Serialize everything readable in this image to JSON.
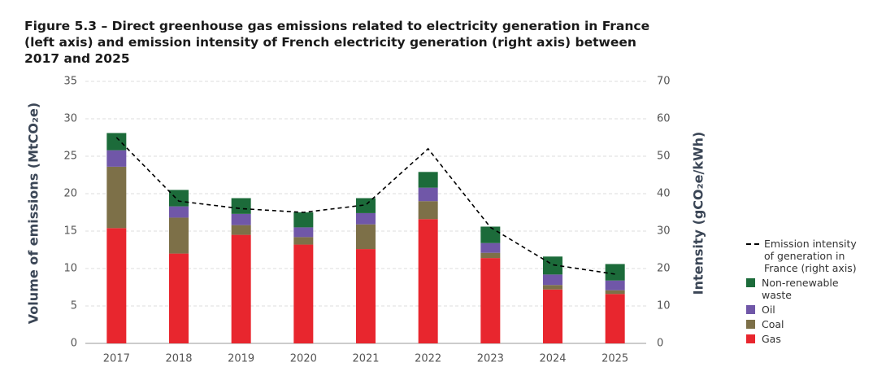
{
  "chart_data": {
    "type": "bar",
    "stacked": true,
    "title": "Figure 5.3 – Direct greenhouse gas emissions related to electricity generation in France (left axis) and emission intensity of French electricity generation (right axis) between 2017 and 2025",
    "y_label": "Volume of emissions (MtCO₂e)",
    "y2_label": "Intensity (gCO₂e/kWh)",
    "categories": [
      "2017",
      "2018",
      "2019",
      "2020",
      "2021",
      "2022",
      "2023",
      "2024",
      "2025"
    ],
    "series": [
      {
        "name": "Gas",
        "color": "#e8262e",
        "values": [
          15.4,
          12.0,
          14.5,
          13.2,
          12.6,
          16.6,
          11.4,
          7.2,
          6.6
        ]
      },
      {
        "name": "Coal",
        "color": "#7d7048",
        "values": [
          8.2,
          4.8,
          1.3,
          1.0,
          3.3,
          2.4,
          0.7,
          0.6,
          0.5
        ]
      },
      {
        "name": "Oil",
        "color": "#7057a8",
        "values": [
          2.2,
          1.5,
          1.5,
          1.3,
          1.5,
          1.8,
          1.3,
          1.4,
          1.3
        ]
      },
      {
        "name": "Non-renewable waste",
        "color": "#1c6b3a",
        "values": [
          2.3,
          2.2,
          2.1,
          2.0,
          2.0,
          2.1,
          2.2,
          2.4,
          2.2
        ]
      },
      {
        "name": "Emission intensity of generation in France (right axis)",
        "color": "#000000",
        "type": "line",
        "line_style": "dashed",
        "axis": "y2",
        "values": [
          55,
          38,
          36,
          35,
          37,
          52,
          31,
          21,
          18.5
        ]
      }
    ],
    "ylim": [
      0,
      35
    ],
    "yticks": [
      0,
      5,
      10,
      15,
      20,
      25,
      30,
      35
    ],
    "y2lim": [
      0,
      70
    ],
    "y2ticks": [
      0,
      10,
      20,
      30,
      40,
      50,
      60,
      70
    ],
    "grid": true
  }
}
